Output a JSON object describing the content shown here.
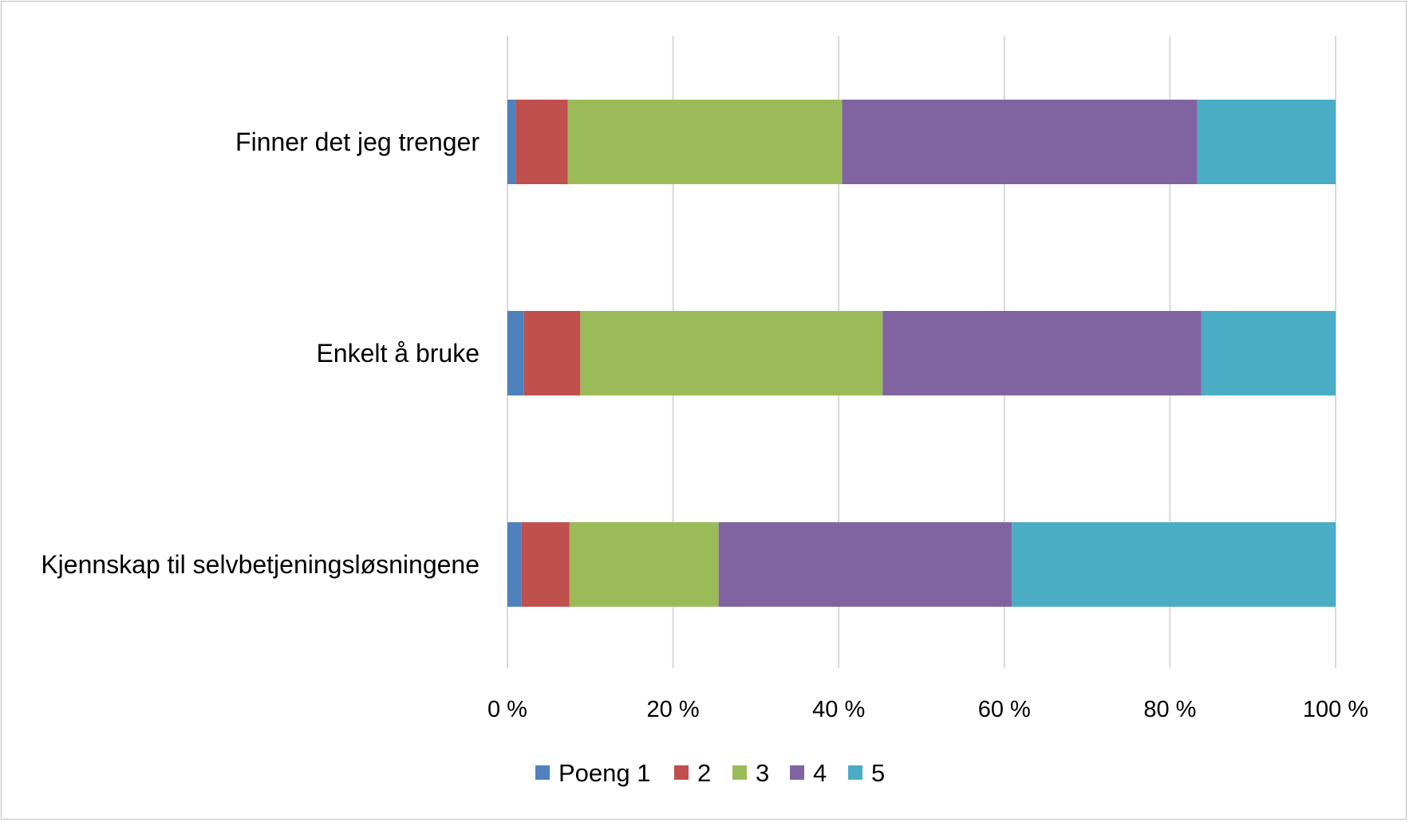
{
  "chart_data": {
    "type": "bar",
    "orientation": "horizontal",
    "stacked": "100%",
    "categories": [
      "Finner det jeg trenger",
      "Enkelt å bruke",
      "Kjennskap til selvbetjeningsløsningene"
    ],
    "series": [
      {
        "name": "Poeng 1",
        "color": "#4f81bd",
        "values": [
          1.0,
          2.0,
          1.7
        ]
      },
      {
        "name": "2",
        "color": "#c0504d",
        "values": [
          6.3,
          6.8,
          5.8
        ]
      },
      {
        "name": "3",
        "color": "#9bbb59",
        "values": [
          33.1,
          36.5,
          18.0
        ]
      },
      {
        "name": "4",
        "color": "#8064a2",
        "values": [
          42.9,
          38.5,
          35.4
        ]
      },
      {
        "name": "5",
        "color": "#4bacc6",
        "values": [
          16.7,
          16.2,
          39.1
        ]
      }
    ],
    "x_ticks": [
      "0 %",
      "20 %",
      "40 %",
      "60 %",
      "80 %",
      "100 %"
    ],
    "xlim": [
      0,
      100
    ],
    "grid": "vertical",
    "legend": "bottom"
  }
}
